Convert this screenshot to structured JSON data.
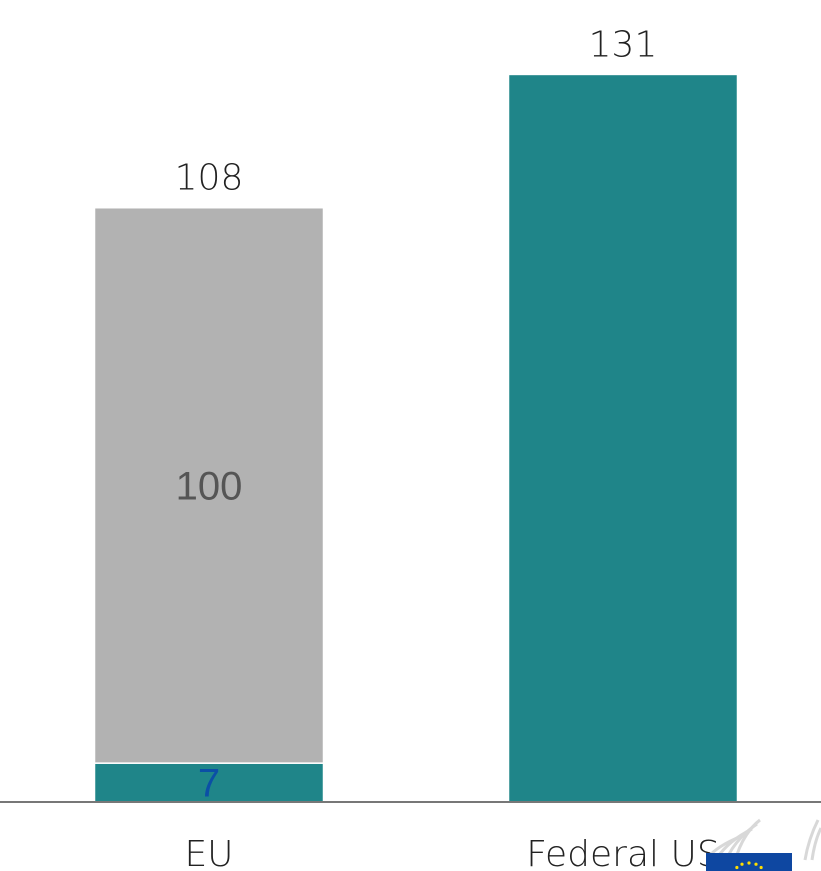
{
  "chart_data": {
    "type": "bar",
    "stacked": true,
    "categories": [
      "EU",
      "Federal US"
    ],
    "series": [
      {
        "values": [
          7,
          131
        ],
        "color": "#1f8589",
        "label_color": "#0b4fa6",
        "show_labels": [
          true,
          false
        ]
      },
      {
        "values": [
          100,
          null
        ],
        "color": "#b2b2b2",
        "label_color": "#555555",
        "show_labels": [
          true,
          false
        ]
      }
    ],
    "totals": [
      "108",
      "131"
    ],
    "ylim": [
      0,
      139
    ],
    "grid": false,
    "legend": "none",
    "axis_color": "#777777"
  },
  "logo": {
    "name": "european-commission-logo",
    "flag_color": "#0e47a1",
    "star_color": "#ffde00"
  }
}
